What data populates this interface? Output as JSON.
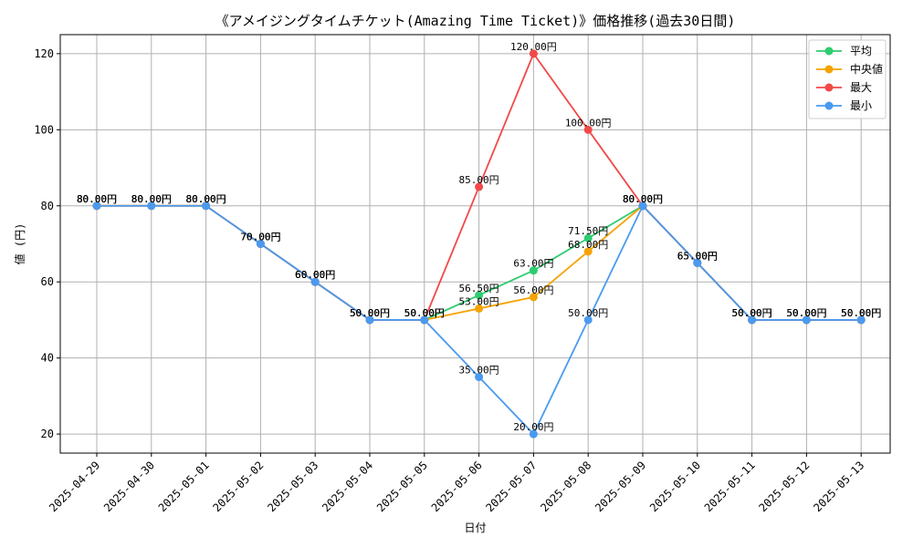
{
  "chart_data": {
    "type": "line",
    "title": "《アメイジングタイムチケット(Amazing Time Ticket)》価格推移(過去30日間)",
    "xlabel": "日付",
    "ylabel": "値 (円)",
    "value_suffix": "円",
    "ylim": [
      15,
      125
    ],
    "yticks": [
      20,
      40,
      60,
      80,
      100,
      120
    ],
    "grid": true,
    "legend_position": "top-right",
    "categories": [
      "2025-04-29",
      "2025-04-30",
      "2025-05-01",
      "2025-05-02",
      "2025-05-03",
      "2025-05-04",
      "2025-05-05",
      "2025-05-06",
      "2025-05-07",
      "2025-05-08",
      "2025-05-09",
      "2025-05-10",
      "2025-05-11",
      "2025-05-12",
      "2025-05-13"
    ],
    "series": [
      {
        "name": "平均",
        "color": "#2ecc71",
        "values": [
          80,
          80,
          80,
          70,
          60,
          50,
          50,
          56.5,
          63,
          71.5,
          80,
          65,
          50,
          50,
          50
        ]
      },
      {
        "name": "中央値",
        "color": "#f5a300",
        "values": [
          80,
          80,
          80,
          70,
          60,
          50,
          50,
          53,
          56,
          68,
          80,
          65,
          50,
          50,
          50
        ]
      },
      {
        "name": "最大",
        "color": "#f24848",
        "values": [
          80,
          80,
          80,
          70,
          60,
          50,
          50,
          85,
          120,
          100,
          80,
          65,
          50,
          50,
          50
        ]
      },
      {
        "name": "最小",
        "color": "#4a9af0",
        "values": [
          80,
          80,
          80,
          70,
          60,
          50,
          50,
          35,
          20,
          50,
          80,
          65,
          50,
          50,
          50
        ]
      }
    ]
  }
}
